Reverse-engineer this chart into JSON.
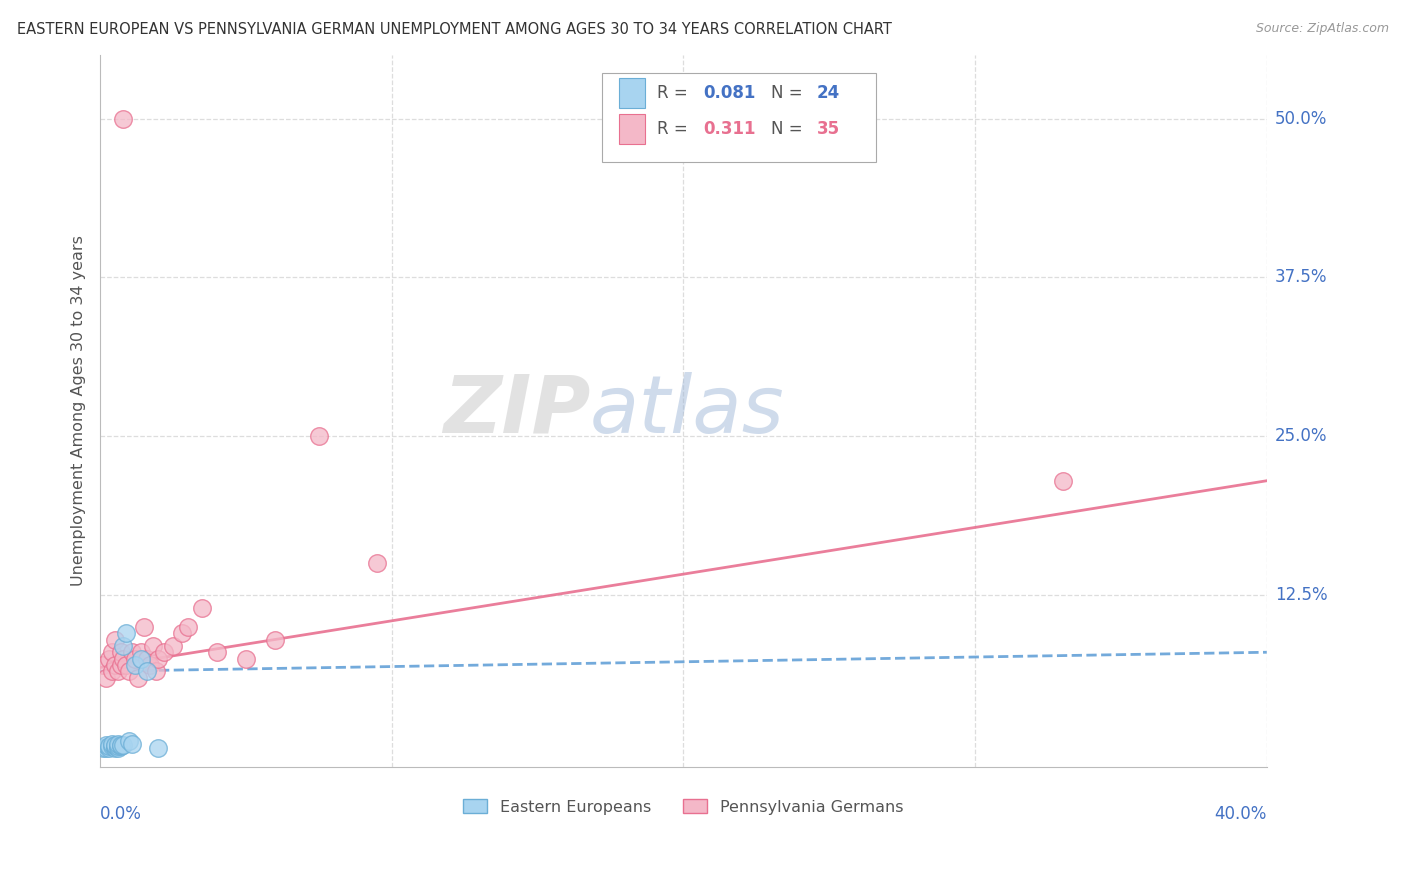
{
  "title": "EASTERN EUROPEAN VS PENNSYLVANIA GERMAN UNEMPLOYMENT AMONG AGES 30 TO 34 YEARS CORRELATION CHART",
  "source": "Source: ZipAtlas.com",
  "ylabel": "Unemployment Among Ages 30 to 34 years",
  "ytick_vals": [
    0.125,
    0.25,
    0.375,
    0.5
  ],
  "ytick_labels": [
    "12.5%",
    "25.0%",
    "37.5%",
    "50.0%"
  ],
  "xlim": [
    0.0,
    0.4
  ],
  "ylim": [
    -0.01,
    0.55
  ],
  "watermark_zip": "ZIP",
  "watermark_atlas": "atlas",
  "blue_scatter_color": "#a8d4f0",
  "blue_edge_color": "#6baed6",
  "blue_line_color": "#5b9bd5",
  "pink_scatter_color": "#f4b8c8",
  "pink_edge_color": "#e87090",
  "pink_line_color": "#e87090",
  "grid_color": "#dddddd",
  "ee_x": [
    0.001,
    0.002,
    0.002,
    0.003,
    0.003,
    0.004,
    0.004,
    0.005,
    0.005,
    0.005,
    0.006,
    0.006,
    0.006,
    0.007,
    0.007,
    0.008,
    0.008,
    0.009,
    0.01,
    0.011,
    0.012,
    0.014,
    0.016,
    0.02
  ],
  "ee_y": [
    0.005,
    0.005,
    0.007,
    0.005,
    0.006,
    0.006,
    0.008,
    0.005,
    0.006,
    0.007,
    0.005,
    0.006,
    0.008,
    0.006,
    0.007,
    0.007,
    0.085,
    0.095,
    0.01,
    0.008,
    0.07,
    0.075,
    0.065,
    0.005
  ],
  "pg_x": [
    0.001,
    0.002,
    0.003,
    0.004,
    0.004,
    0.005,
    0.005,
    0.006,
    0.007,
    0.007,
    0.008,
    0.008,
    0.009,
    0.01,
    0.011,
    0.012,
    0.013,
    0.014,
    0.015,
    0.016,
    0.017,
    0.018,
    0.019,
    0.02,
    0.022,
    0.025,
    0.028,
    0.03,
    0.035,
    0.04,
    0.05,
    0.06,
    0.075,
    0.095,
    0.33
  ],
  "pg_y": [
    0.07,
    0.06,
    0.075,
    0.065,
    0.08,
    0.07,
    0.09,
    0.065,
    0.07,
    0.08,
    0.5,
    0.075,
    0.07,
    0.065,
    0.08,
    0.075,
    0.06,
    0.08,
    0.1,
    0.075,
    0.07,
    0.085,
    0.065,
    0.075,
    0.08,
    0.085,
    0.095,
    0.1,
    0.115,
    0.08,
    0.075,
    0.09,
    0.25,
    0.15,
    0.215
  ],
  "ee_trend_x0": 0.0,
  "ee_trend_x1": 0.4,
  "ee_trend_y0": 0.065,
  "ee_trend_y1": 0.08,
  "pg_trend_x0": 0.0,
  "pg_trend_x1": 0.4,
  "pg_trend_y0": 0.068,
  "pg_trend_y1": 0.215
}
